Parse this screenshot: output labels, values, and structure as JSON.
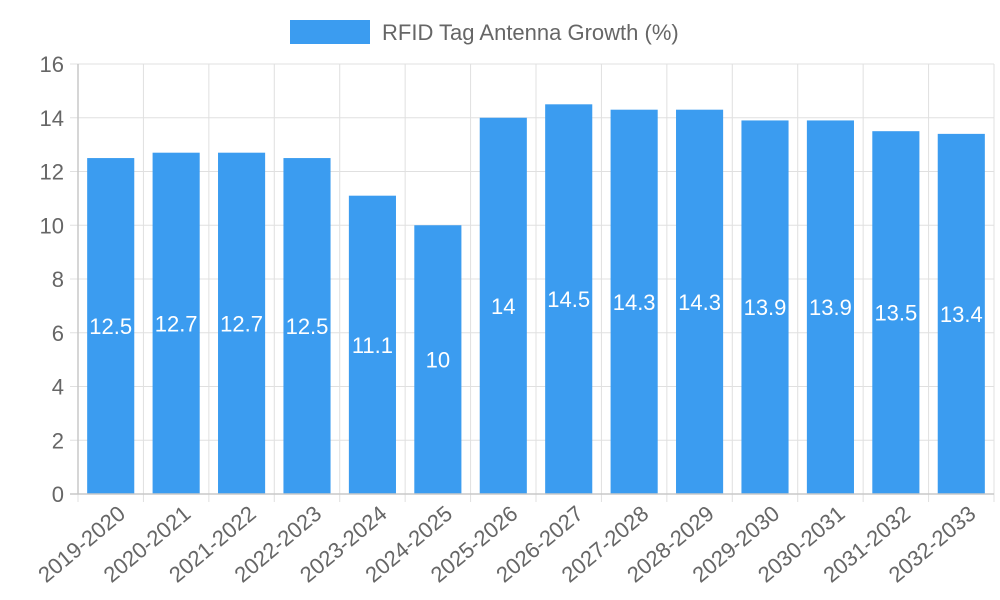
{
  "chart_data": {
    "type": "bar",
    "legend_label": "RFID Tag Antenna Growth (%)",
    "legend_position": "top-center",
    "categories": [
      "2019-2020",
      "2020-2021",
      "2021-2022",
      "2022-2023",
      "2023-2024",
      "2024-2025",
      "2025-2026",
      "2026-2027",
      "2027-2028",
      "2028-2029",
      "2029-2030",
      "2030-2031",
      "2031-2032",
      "2032-2033"
    ],
    "values": [
      12.5,
      12.7,
      12.7,
      12.5,
      11.1,
      10,
      14,
      14.5,
      14.3,
      14.3,
      13.9,
      13.9,
      13.5,
      13.4
    ],
    "ylim": [
      0,
      16
    ],
    "yticks": [
      0,
      2,
      4,
      6,
      8,
      10,
      12,
      14,
      16
    ],
    "grid": true,
    "bar_color": "#3b9cf0",
    "data_label_color": "#ffffff",
    "xlabel": "",
    "ylabel": ""
  }
}
